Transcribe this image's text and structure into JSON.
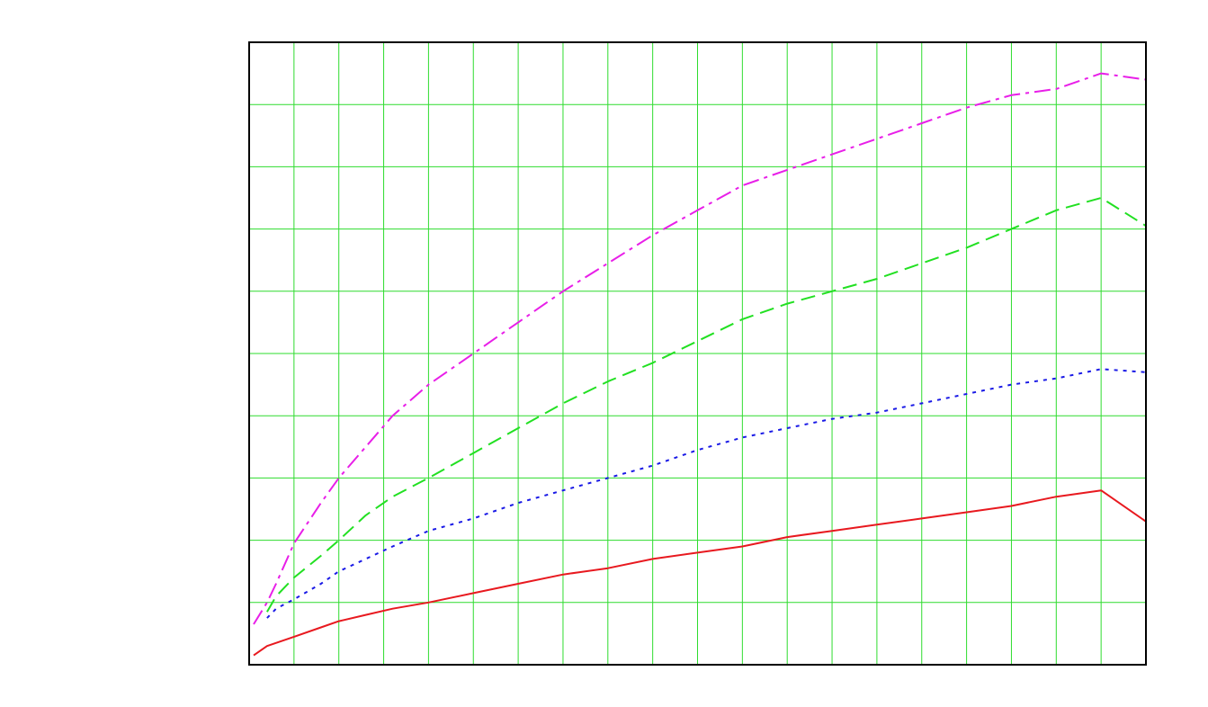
{
  "colors": {
    "grid": "#2edc2e",
    "frame": "#000000",
    "background": "#ffffff"
  },
  "chart_data": {
    "type": "line",
    "title": "",
    "xlabel": "",
    "ylabel": "",
    "xlim": [
      0,
      100
    ],
    "ylim": [
      0,
      100
    ],
    "x_gridlines": 20,
    "y_gridlines": 10,
    "grid": true,
    "legend": "none",
    "series": [
      {
        "color": "#e8191f",
        "dash": "solid",
        "x": [
          0.5,
          2,
          5,
          8,
          10,
          13,
          16,
          20,
          25,
          30,
          35,
          40,
          45,
          50,
          55,
          60,
          65,
          70,
          75,
          80,
          85,
          90,
          95,
          100
        ],
        "y": [
          1.5,
          3,
          4.5,
          6,
          7,
          8,
          9,
          10,
          11.5,
          13,
          14.5,
          15.5,
          17,
          18,
          19,
          20.5,
          21.5,
          22.5,
          23.5,
          24.5,
          25.5,
          27,
          28,
          23
        ]
      },
      {
        "color": "#1a1ae6",
        "dash": "dotted",
        "x": [
          2,
          3,
          5,
          8,
          10,
          13,
          16,
          20,
          25,
          30,
          35,
          40,
          45,
          50,
          55,
          60,
          65,
          70,
          75,
          80,
          85,
          90,
          95,
          100
        ],
        "y": [
          7.5,
          9,
          10.5,
          13,
          15,
          17,
          19,
          21.5,
          23.5,
          26,
          28,
          30,
          32,
          34.5,
          36.5,
          38,
          39.5,
          40.5,
          42,
          43.5,
          45,
          46,
          47.5,
          47
        ]
      },
      {
        "color": "#22e022",
        "dash": "dashed",
        "x": [
          2,
          3,
          5,
          8,
          10,
          13,
          16,
          20,
          25,
          30,
          35,
          40,
          45,
          50,
          55,
          60,
          65,
          70,
          75,
          80,
          85,
          90,
          95,
          100
        ],
        "y": [
          8.5,
          11,
          14,
          17.5,
          20,
          24,
          27,
          30,
          34,
          38,
          42,
          45.5,
          48.5,
          52,
          55.5,
          58,
          60,
          62,
          64.5,
          67,
          70,
          73,
          75,
          70.5
        ]
      },
      {
        "color": "#e81fe8",
        "dash": "dash-dot",
        "x": [
          0.5,
          2,
          3,
          5,
          8,
          10,
          13,
          16,
          20,
          25,
          30,
          35,
          40,
          45,
          50,
          55,
          60,
          65,
          70,
          75,
          80,
          85,
          90,
          95,
          100
        ],
        "y": [
          6.5,
          10,
          13,
          19.5,
          26,
          30,
          35,
          40,
          45,
          50,
          55,
          60,
          64.5,
          69,
          73,
          77,
          79.5,
          82,
          84.5,
          87,
          89.5,
          91.5,
          92.5,
          95,
          94
        ]
      }
    ]
  }
}
